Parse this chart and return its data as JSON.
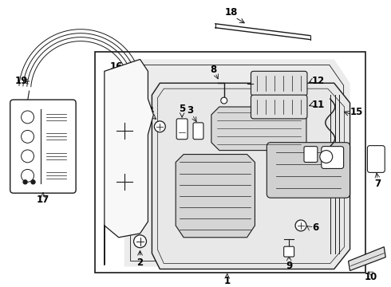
{
  "background_color": "#ffffff",
  "line_color": "#1a1a1a",
  "fig_width": 4.9,
  "fig_height": 3.6,
  "dpi": 100,
  "font_size": 8.5
}
